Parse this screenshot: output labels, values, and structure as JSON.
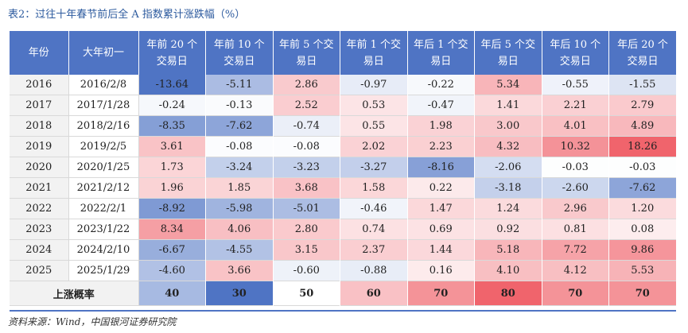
{
  "title": "表2：过往十年春节前后全 A 指数累计涨跌幅（%）",
  "headers": [
    "年份",
    "大年初一",
    "年前 20 个交易日",
    "年前 10 个交易日",
    "年前 5 个交易日",
    "年前 1 个交易日",
    "年后 1 个交易日",
    "年后 5 个交易日",
    "年后 10 个交易日",
    "年后 20 个交易日"
  ],
  "rows": [
    {
      "year": "2016",
      "date": "2016/2/8",
      "values": [
        "-13.64",
        "-5.11",
        "2.86",
        "-0.97",
        "-0.22",
        "5.34",
        "-0.55",
        "-1.55"
      ]
    },
    {
      "year": "2017",
      "date": "2017/1/28",
      "values": [
        "-0.24",
        "-0.13",
        "2.52",
        "0.53",
        "-0.47",
        "1.41",
        "2.21",
        "2.79"
      ]
    },
    {
      "year": "2018",
      "date": "2018/2/16",
      "values": [
        "-8.35",
        "-7.62",
        "-0.74",
        "0.55",
        "1.98",
        "3.00",
        "4.01",
        "4.89"
      ]
    },
    {
      "year": "2019",
      "date": "2019/2/5",
      "values": [
        "3.61",
        "-0.08",
        "-0.08",
        "2.02",
        "2.23",
        "4.32",
        "10.32",
        "18.26"
      ]
    },
    {
      "year": "2020",
      "date": "2020/1/25",
      "values": [
        "1.73",
        "-3.24",
        "-3.23",
        "-3.27",
        "-8.16",
        "-2.06",
        "-0.03",
        "-0.03"
      ]
    },
    {
      "year": "2021",
      "date": "2021/2/12",
      "values": [
        "1.96",
        "1.85",
        "3.68",
        "1.58",
        "0.22",
        "-3.18",
        "-2.60",
        "-7.62"
      ]
    },
    {
      "year": "2022",
      "date": "2022/2/1",
      "values": [
        "-8.92",
        "-5.98",
        "-5.01",
        "-0.46",
        "1.47",
        "1.24",
        "2.96",
        "1.20"
      ]
    },
    {
      "year": "2023",
      "date": "2023/1/22",
      "values": [
        "8.34",
        "4.06",
        "2.80",
        "0.74",
        "0.69",
        "0.92",
        "0.81",
        "0.08"
      ]
    },
    {
      "year": "2024",
      "date": "2024/2/10",
      "values": [
        "-6.67",
        "-4.55",
        "3.15",
        "2.37",
        "1.44",
        "5.18",
        "7.72",
        "9.86"
      ]
    },
    {
      "year": "2025",
      "date": "2025/1/29",
      "values": [
        "-4.60",
        "3.66",
        "-0.60",
        "-0.88",
        "0.16",
        "4.10",
        "4.12",
        "5.53"
      ]
    }
  ],
  "summary": {
    "label": "上涨概率",
    "values": [
      "40",
      "30",
      "50",
      "60",
      "70",
      "80",
      "70",
      "70"
    ]
  },
  "source": "资料来源：Wind，中国银河证券研究院",
  "colors": {
    "header": "#4f74c4",
    "title": "#2c5a9e",
    "negative_max": "#4f74c4",
    "positive_max": "#f0646c",
    "label_col": "#f2f2f2"
  }
}
